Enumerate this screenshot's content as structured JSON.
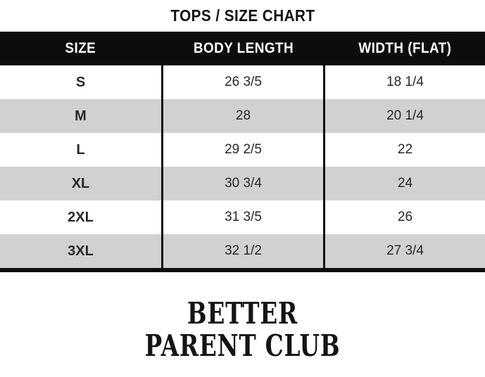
{
  "title": "TOPS / SIZE CHART",
  "table": {
    "columns": [
      "SIZE",
      "BODY LENGTH",
      "WIDTH (FLAT)"
    ],
    "rows": [
      {
        "size": "S",
        "body_length": "26 3/5",
        "width_flat": "18 1/4"
      },
      {
        "size": "M",
        "body_length": "28",
        "width_flat": "20 1/4"
      },
      {
        "size": "L",
        "body_length": "29 2/5",
        "width_flat": "22"
      },
      {
        "size": "XL",
        "body_length": "30 3/4",
        "width_flat": "24"
      },
      {
        "size": "2XL",
        "body_length": "31 3/5",
        "width_flat": "26"
      },
      {
        "size": "3XL",
        "body_length": "32 1/2",
        "width_flat": "27 3/4"
      }
    ],
    "colors": {
      "header_bg": "#0d0d0d",
      "header_text": "#ffffff",
      "stripe_row_bg": "#d1d1d1",
      "plain_row_bg": "#ffffff",
      "cell_text": "#282828",
      "divider": "#0d0d0d"
    }
  },
  "brand": {
    "line1": "BETTER",
    "line2": "PARENT CLUB"
  }
}
